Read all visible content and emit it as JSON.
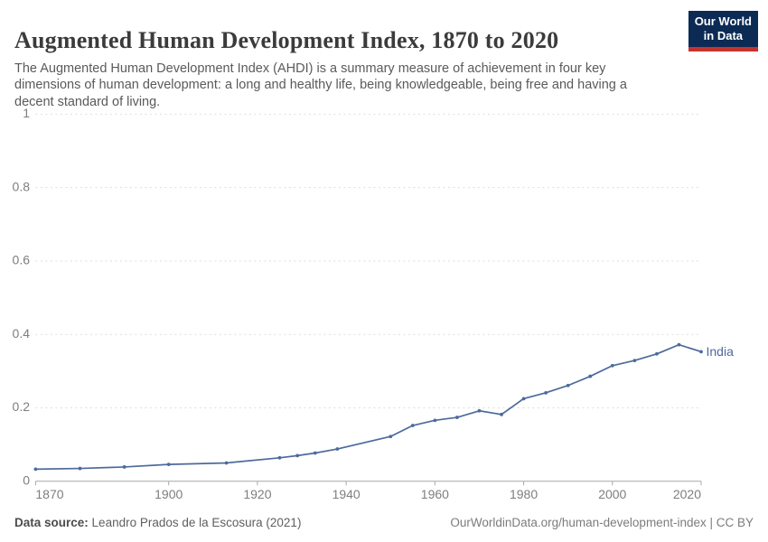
{
  "header": {
    "title": "Augmented Human Development Index, 1870 to 2020",
    "subtitle": "The Augmented Human Development Index (AHDI) is a summary measure of achievement in four key dimensions of human development: a long and healthy life, being knowledgeable, being free and having a decent standard of living.",
    "logo": {
      "line1": "Our World",
      "line2": "in Data",
      "bg_color": "#0b2b55",
      "stripe_color": "#c5332d"
    }
  },
  "chart_data": {
    "type": "line",
    "title": "Augmented Human Development Index, 1870 to 2020",
    "xlabel": "",
    "ylabel": "",
    "xlim": [
      1870,
      2020
    ],
    "ylim": [
      0,
      1
    ],
    "grid": "horizontal-dashed",
    "legend": "end-of-line-label",
    "x_ticks": [
      1870,
      1900,
      1920,
      1940,
      1960,
      1980,
      2000,
      2020
    ],
    "x_tick_labels": [
      "1870",
      "1900",
      "1920",
      "1940",
      "1960",
      "1980",
      "2000",
      "2020"
    ],
    "y_ticks": [
      0,
      0.2,
      0.4,
      0.6,
      0.8,
      1
    ],
    "y_tick_labels": [
      "0",
      "0.2",
      "0.4",
      "0.6",
      "0.8",
      "1"
    ],
    "x": [
      1870,
      1880,
      1890,
      1900,
      1913,
      1925,
      1929,
      1933,
      1938,
      1950,
      1955,
      1960,
      1965,
      1970,
      1975,
      1980,
      1985,
      1990,
      1995,
      2000,
      2005,
      2010,
      2015,
      2020
    ],
    "series": [
      {
        "name": "India",
        "color": "#4c6a9c",
        "values": [
          0.033,
          0.035,
          0.039,
          0.046,
          0.05,
          0.064,
          0.07,
          0.077,
          0.088,
          0.122,
          0.152,
          0.166,
          0.174,
          0.192,
          0.182,
          0.225,
          0.241,
          0.261,
          0.286,
          0.315,
          0.329,
          0.347,
          0.372,
          0.353
        ]
      }
    ],
    "colors": {
      "gridline": "#dedede",
      "axis": "#a8a8a8",
      "tick_label": "#7e7e7e"
    }
  },
  "footer": {
    "datasource_label": "Data source:",
    "datasource_value": "Leandro Prados de la Escosura (2021)",
    "link": "OurWorldinData.org/human-development-index | CC BY"
  }
}
